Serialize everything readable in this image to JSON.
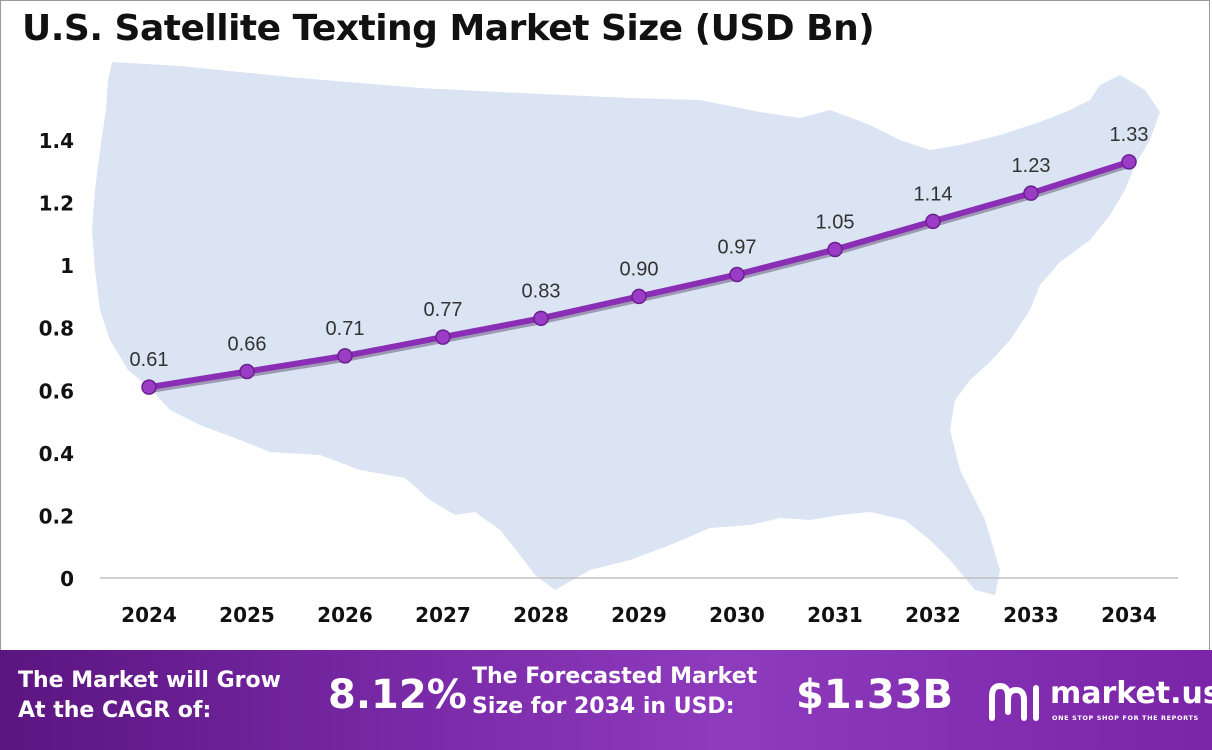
{
  "title": "U.S. Satellite Texting Market Size (USD Bn)",
  "chart_data": {
    "type": "line",
    "title": "U.S. Satellite Texting Market Size (USD Bn)",
    "categories": [
      "2024",
      "2025",
      "2026",
      "2027",
      "2028",
      "2029",
      "2030",
      "2031",
      "2032",
      "2033",
      "2034"
    ],
    "values": [
      0.61,
      0.66,
      0.71,
      0.77,
      0.83,
      0.9,
      0.97,
      1.05,
      1.14,
      1.23,
      1.33
    ],
    "value_labels": [
      "0.61",
      "0.66",
      "0.71",
      "0.77",
      "0.83",
      "0.90",
      "0.97",
      "1.05",
      "1.14",
      "1.23",
      "1.33"
    ],
    "y_ticks": [
      0,
      0.2,
      0.4,
      0.6,
      0.8,
      1,
      1.2,
      1.4
    ],
    "y_tick_labels": [
      "0",
      "0.2",
      "0.4",
      "0.6",
      "0.8",
      "1",
      "1.2",
      "1.4"
    ],
    "ylim": [
      0,
      1.4
    ],
    "xlabel": "",
    "ylabel": "",
    "grid": false,
    "legend": "none",
    "line_color": "#8a2fb5",
    "marker_color": "#9b3cc6",
    "background_map_color": "#dbe4f3"
  },
  "footer": {
    "cagr_label_line1": "The Market will Grow",
    "cagr_label_line2": "At the CAGR of:",
    "cagr_value": "8.12%",
    "forecast_label_line1": "The Forecasted Market",
    "forecast_label_line2": "Size for 2034 in USD:",
    "forecast_value": "$1.33B",
    "logo_text": "market.us",
    "logo_tagline": "ONE STOP SHOP FOR THE REPORTS"
  }
}
